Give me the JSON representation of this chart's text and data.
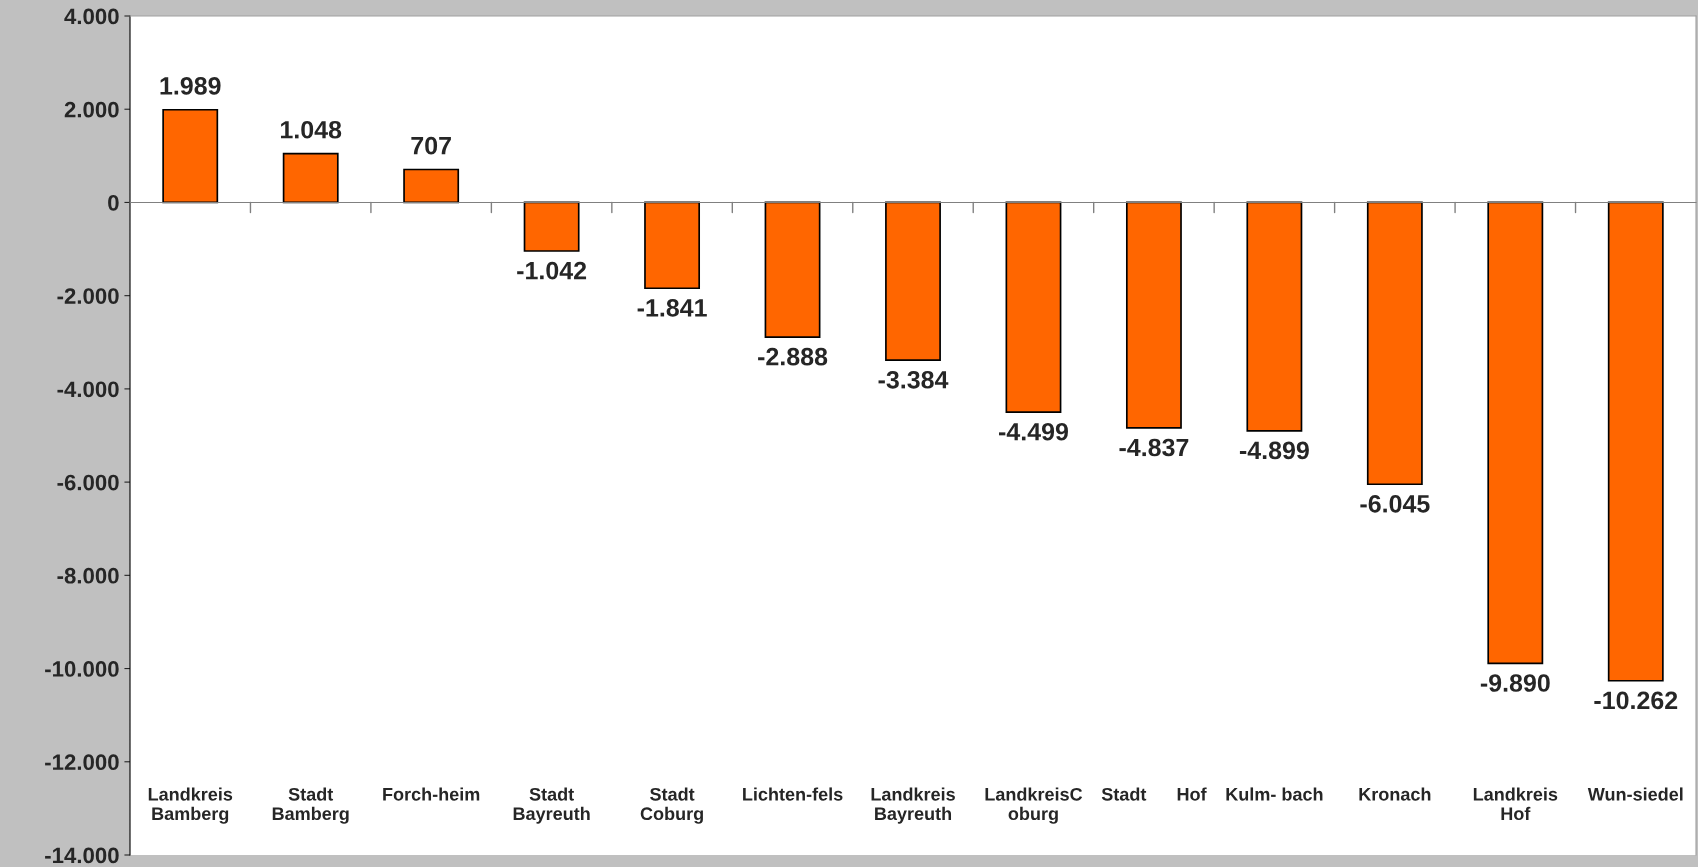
{
  "chart_data": {
    "type": "bar",
    "categories": [
      "Landkreis\nBamberg",
      "Stadt\nBamberg",
      "Forch-heim",
      "Stadt\nBayreuth",
      "Stadt\nCoburg",
      "Lichten-fels",
      "Landkreis\nBayreuth",
      "LandkreisC\noburg",
      "Stadt      Hof",
      "Kulm- bach",
      "Kronach",
      "Landkreis\nHof",
      "Wun-siedel"
    ],
    "values": [
      1989,
      1048,
      707,
      -1042,
      -1841,
      -2888,
      -3384,
      -4499,
      -4837,
      -4899,
      -6045,
      -9890,
      -10262
    ],
    "value_labels": [
      "1.989",
      "1.048",
      "707",
      "-1.042",
      "-1.841",
      "-2.888",
      "-3.384",
      "-4.499",
      "-4.837",
      "-4.899",
      "-6.045",
      "-9.890",
      "-10.262"
    ],
    "color": "#ff6600",
    "ylim": [
      -14000,
      4000
    ],
    "yticks": [
      {
        "value": -14000,
        "label": "-14.000"
      },
      {
        "value": -12000,
        "label": "-12.000"
      },
      {
        "value": -10000,
        "label": "-10.000"
      },
      {
        "value": -8000,
        "label": "-8.000"
      },
      {
        "value": -6000,
        "label": "-6.000"
      },
      {
        "value": -4000,
        "label": "-4.000"
      },
      {
        "value": -2000,
        "label": "-2.000"
      },
      0,
      {
        "value": 2000,
        "label": "2.000"
      },
      {
        "value": 4000,
        "label": "4.000"
      }
    ],
    "orientation": "vertical"
  }
}
